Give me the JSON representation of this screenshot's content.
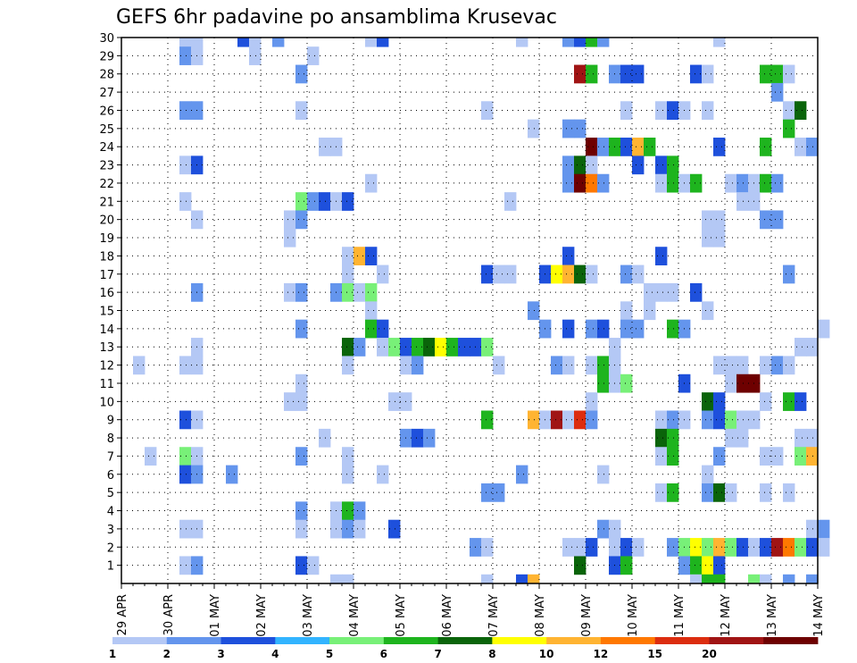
{
  "chart_data": {
    "type": "heatmap",
    "title": "GEFS 6hr padavine po ansamblima Krusevac",
    "ylim": [
      0,
      30
    ],
    "yticks": [
      "1",
      "2",
      "3",
      "4",
      "5",
      "6",
      "7",
      "8",
      "9",
      "10",
      "11",
      "12",
      "13",
      "14",
      "15",
      "16",
      "17",
      "18",
      "19",
      "20",
      "21",
      "22",
      "23",
      "24",
      "25",
      "26",
      "27",
      "28",
      "29",
      "30"
    ],
    "xticks": [
      "29 APR",
      "30 APR",
      "01 MAY",
      "02 MAY",
      "03 MAY",
      "04 MAY",
      "05 MAY",
      "06 MAY",
      "07 MAY",
      "08 MAY",
      "09 MAY",
      "10 MAY",
      "11 MAY",
      "12 MAY",
      "13 MAY",
      "14 MAY"
    ],
    "x_step_hours": 6,
    "grid": true,
    "colorbar": {
      "colors": [
        "#b4c8f5",
        "#6495ed",
        "#1e50dc",
        "#32b4ff",
        "#78f078",
        "#1eb41e",
        "#0a640a",
        "#ffff00",
        "#ffb432",
        "#ff7800",
        "#dc2d0f",
        "#a01414",
        "#6e0000"
      ],
      "labels": [
        "1",
        "2",
        "3",
        "4",
        "5",
        "6",
        "7",
        "8",
        "10",
        "12",
        "15",
        "20"
      ]
    },
    "cells": [
      [
        30,
        5,
        0
      ],
      [
        30,
        6,
        0
      ],
      [
        30,
        10,
        2
      ],
      [
        30,
        11,
        0
      ],
      [
        30,
        13,
        1
      ],
      [
        30,
        21,
        0
      ],
      [
        30,
        22,
        2
      ],
      [
        30,
        34,
        0
      ],
      [
        30,
        38,
        1
      ],
      [
        30,
        39,
        2
      ],
      [
        30,
        40,
        5
      ],
      [
        30,
        41,
        1
      ],
      [
        30,
        51,
        0
      ],
      [
        29,
        5,
        1
      ],
      [
        29,
        6,
        0
      ],
      [
        29,
        11,
        0
      ],
      [
        29,
        16,
        0
      ],
      [
        28,
        15,
        1
      ],
      [
        28,
        39,
        11
      ],
      [
        28,
        40,
        5
      ],
      [
        28,
        42,
        1
      ],
      [
        28,
        43,
        2
      ],
      [
        28,
        44,
        2
      ],
      [
        28,
        49,
        2
      ],
      [
        28,
        50,
        0
      ],
      [
        28,
        55,
        5
      ],
      [
        28,
        56,
        5
      ],
      [
        28,
        57,
        0
      ],
      [
        27,
        56,
        1
      ],
      [
        26,
        5,
        1
      ],
      [
        26,
        6,
        1
      ],
      [
        26,
        15,
        0
      ],
      [
        26,
        31,
        0
      ],
      [
        26,
        43,
        0
      ],
      [
        26,
        46,
        0
      ],
      [
        26,
        47,
        2
      ],
      [
        26,
        48,
        0
      ],
      [
        26,
        50,
        0
      ],
      [
        26,
        57,
        0
      ],
      [
        26,
        58,
        6
      ],
      [
        25,
        35,
        0
      ],
      [
        25,
        38,
        1
      ],
      [
        25,
        39,
        1
      ],
      [
        25,
        57,
        5
      ],
      [
        24,
        17,
        0
      ],
      [
        24,
        18,
        0
      ],
      [
        24,
        40,
        12
      ],
      [
        24,
        41,
        1
      ],
      [
        24,
        42,
        5
      ],
      [
        24,
        43,
        2
      ],
      [
        24,
        44,
        8
      ],
      [
        24,
        45,
        5
      ],
      [
        24,
        51,
        2
      ],
      [
        24,
        55,
        5
      ],
      [
        24,
        58,
        0
      ],
      [
        24,
        59,
        1
      ],
      [
        23,
        5,
        0
      ],
      [
        23,
        6,
        2
      ],
      [
        23,
        38,
        1
      ],
      [
        23,
        39,
        6
      ],
      [
        23,
        40,
        0
      ],
      [
        23,
        44,
        2
      ],
      [
        23,
        46,
        2
      ],
      [
        23,
        47,
        5
      ],
      [
        22,
        21,
        0
      ],
      [
        22,
        38,
        1
      ],
      [
        22,
        39,
        12
      ],
      [
        22,
        40,
        9
      ],
      [
        22,
        41,
        1
      ],
      [
        22,
        46,
        0
      ],
      [
        22,
        47,
        5
      ],
      [
        22,
        48,
        0
      ],
      [
        22,
        49,
        5
      ],
      [
        22,
        52,
        0
      ],
      [
        22,
        53,
        1
      ],
      [
        22,
        54,
        0
      ],
      [
        22,
        55,
        5
      ],
      [
        22,
        56,
        1
      ],
      [
        21,
        5,
        0
      ],
      [
        21,
        15,
        4
      ],
      [
        21,
        16,
        1
      ],
      [
        21,
        17,
        2
      ],
      [
        21,
        18,
        0
      ],
      [
        21,
        19,
        2
      ],
      [
        21,
        33,
        0
      ],
      [
        21,
        53,
        0
      ],
      [
        21,
        54,
        0
      ],
      [
        20,
        6,
        0
      ],
      [
        20,
        14,
        0
      ],
      [
        20,
        15,
        1
      ],
      [
        20,
        50,
        0
      ],
      [
        20,
        51,
        0
      ],
      [
        20,
        55,
        1
      ],
      [
        20,
        56,
        1
      ],
      [
        19,
        14,
        0
      ],
      [
        19,
        50,
        0
      ],
      [
        19,
        51,
        0
      ],
      [
        18,
        19,
        0
      ],
      [
        18,
        20,
        8
      ],
      [
        18,
        21,
        2
      ],
      [
        18,
        38,
        2
      ],
      [
        18,
        46,
        2
      ],
      [
        17,
        19,
        0
      ],
      [
        17,
        22,
        0
      ],
      [
        17,
        31,
        2
      ],
      [
        17,
        32,
        0
      ],
      [
        17,
        33,
        0
      ],
      [
        17,
        36,
        2
      ],
      [
        17,
        37,
        7
      ],
      [
        17,
        38,
        8
      ],
      [
        17,
        39,
        6
      ],
      [
        17,
        40,
        0
      ],
      [
        17,
        43,
        1
      ],
      [
        17,
        44,
        0
      ],
      [
        17,
        57,
        1
      ],
      [
        16,
        6,
        1
      ],
      [
        16,
        14,
        0
      ],
      [
        16,
        15,
        1
      ],
      [
        16,
        18,
        1
      ],
      [
        16,
        19,
        4
      ],
      [
        16,
        20,
        0
      ],
      [
        16,
        21,
        4
      ],
      [
        16,
        45,
        0
      ],
      [
        16,
        46,
        0
      ],
      [
        16,
        47,
        0
      ],
      [
        16,
        49,
        2
      ],
      [
        15,
        21,
        0
      ],
      [
        15,
        35,
        1
      ],
      [
        15,
        43,
        0
      ],
      [
        15,
        45,
        0
      ],
      [
        15,
        50,
        0
      ],
      [
        14,
        15,
        1
      ],
      [
        14,
        21,
        5
      ],
      [
        14,
        22,
        2
      ],
      [
        14,
        36,
        1
      ],
      [
        14,
        38,
        2
      ],
      [
        14,
        40,
        1
      ],
      [
        14,
        41,
        2
      ],
      [
        14,
        43,
        1
      ],
      [
        14,
        44,
        1
      ],
      [
        14,
        47,
        5
      ],
      [
        14,
        48,
        1
      ],
      [
        14,
        60,
        0
      ],
      [
        13,
        6,
        0
      ],
      [
        13,
        19,
        6
      ],
      [
        13,
        20,
        1
      ],
      [
        13,
        22,
        0
      ],
      [
        13,
        23,
        4
      ],
      [
        13,
        24,
        2
      ],
      [
        13,
        25,
        5
      ],
      [
        13,
        26,
        6
      ],
      [
        13,
        27,
        7
      ],
      [
        13,
        28,
        5
      ],
      [
        13,
        29,
        2
      ],
      [
        13,
        30,
        2
      ],
      [
        13,
        31,
        4
      ],
      [
        13,
        42,
        0
      ],
      [
        13,
        58,
        0
      ],
      [
        13,
        59,
        0
      ],
      [
        12,
        1,
        0
      ],
      [
        12,
        5,
        0
      ],
      [
        12,
        6,
        0
      ],
      [
        12,
        19,
        0
      ],
      [
        12,
        24,
        0
      ],
      [
        12,
        25,
        1
      ],
      [
        12,
        32,
        0
      ],
      [
        12,
        37,
        1
      ],
      [
        12,
        38,
        0
      ],
      [
        12,
        40,
        0
      ],
      [
        12,
        41,
        5
      ],
      [
        12,
        42,
        0
      ],
      [
        12,
        51,
        0
      ],
      [
        12,
        52,
        0
      ],
      [
        12,
        53,
        0
      ],
      [
        12,
        55,
        0
      ],
      [
        12,
        56,
        1
      ],
      [
        12,
        57,
        0
      ],
      [
        11,
        15,
        0
      ],
      [
        11,
        41,
        5
      ],
      [
        11,
        42,
        0
      ],
      [
        11,
        43,
        4
      ],
      [
        11,
        48,
        2
      ],
      [
        11,
        52,
        0
      ],
      [
        11,
        53,
        12
      ],
      [
        11,
        54,
        12
      ],
      [
        10,
        14,
        0
      ],
      [
        10,
        15,
        0
      ],
      [
        10,
        23,
        0
      ],
      [
        10,
        24,
        0
      ],
      [
        10,
        40,
        0
      ],
      [
        10,
        50,
        6
      ],
      [
        10,
        51,
        2
      ],
      [
        10,
        55,
        0
      ],
      [
        10,
        57,
        5
      ],
      [
        10,
        58,
        2
      ],
      [
        9,
        5,
        2
      ],
      [
        9,
        6,
        0
      ],
      [
        9,
        31,
        5
      ],
      [
        9,
        35,
        8
      ],
      [
        9,
        36,
        0
      ],
      [
        9,
        37,
        11
      ],
      [
        9,
        38,
        0
      ],
      [
        9,
        39,
        10
      ],
      [
        9,
        40,
        1
      ],
      [
        9,
        46,
        0
      ],
      [
        9,
        47,
        1
      ],
      [
        9,
        48,
        0
      ],
      [
        9,
        50,
        1
      ],
      [
        9,
        51,
        2
      ],
      [
        9,
        52,
        4
      ],
      [
        9,
        53,
        0
      ],
      [
        9,
        54,
        0
      ],
      [
        8,
        17,
        0
      ],
      [
        8,
        24,
        1
      ],
      [
        8,
        25,
        2
      ],
      [
        8,
        26,
        1
      ],
      [
        8,
        46,
        6
      ],
      [
        8,
        47,
        5
      ],
      [
        8,
        52,
        0
      ],
      [
        8,
        53,
        0
      ],
      [
        8,
        58,
        0
      ],
      [
        8,
        59,
        0
      ],
      [
        7,
        2,
        0
      ],
      [
        7,
        5,
        4
      ],
      [
        7,
        6,
        0
      ],
      [
        7,
        15,
        1
      ],
      [
        7,
        19,
        0
      ],
      [
        7,
        46,
        0
      ],
      [
        7,
        47,
        5
      ],
      [
        7,
        51,
        1
      ],
      [
        7,
        55,
        0
      ],
      [
        7,
        56,
        0
      ],
      [
        7,
        58,
        4
      ],
      [
        7,
        59,
        8
      ],
      [
        6,
        5,
        2
      ],
      [
        6,
        6,
        1
      ],
      [
        6,
        9,
        1
      ],
      [
        6,
        19,
        0
      ],
      [
        6,
        22,
        0
      ],
      [
        6,
        34,
        1
      ],
      [
        6,
        41,
        0
      ],
      [
        6,
        50,
        0
      ],
      [
        5,
        31,
        1
      ],
      [
        5,
        32,
        1
      ],
      [
        5,
        46,
        0
      ],
      [
        5,
        47,
        5
      ],
      [
        5,
        50,
        1
      ],
      [
        5,
        51,
        6
      ],
      [
        5,
        52,
        0
      ],
      [
        5,
        55,
        0
      ],
      [
        5,
        57,
        0
      ],
      [
        4,
        15,
        1
      ],
      [
        4,
        18,
        0
      ],
      [
        4,
        19,
        5
      ],
      [
        4,
        20,
        1
      ],
      [
        3,
        5,
        0
      ],
      [
        3,
        6,
        0
      ],
      [
        3,
        15,
        0
      ],
      [
        3,
        18,
        0
      ],
      [
        3,
        19,
        1
      ],
      [
        3,
        20,
        0
      ],
      [
        3,
        23,
        2
      ],
      [
        3,
        41,
        1
      ],
      [
        3,
        42,
        0
      ],
      [
        3,
        59,
        0
      ],
      [
        3,
        60,
        1
      ],
      [
        2,
        30,
        1
      ],
      [
        2,
        31,
        0
      ],
      [
        2,
        38,
        0
      ],
      [
        2,
        39,
        0
      ],
      [
        2,
        40,
        2
      ],
      [
        2,
        42,
        0
      ],
      [
        2,
        43,
        2
      ],
      [
        2,
        44,
        0
      ],
      [
        2,
        47,
        1
      ],
      [
        2,
        48,
        4
      ],
      [
        2,
        49,
        7
      ],
      [
        2,
        50,
        4
      ],
      [
        2,
        51,
        8
      ],
      [
        2,
        52,
        4
      ],
      [
        2,
        53,
        2
      ],
      [
        2,
        54,
        0
      ],
      [
        2,
        55,
        2
      ],
      [
        2,
        56,
        11
      ],
      [
        2,
        57,
        9
      ],
      [
        2,
        58,
        4
      ],
      [
        2,
        59,
        2
      ],
      [
        2,
        60,
        0
      ],
      [
        1,
        5,
        0
      ],
      [
        1,
        6,
        1
      ],
      [
        1,
        15,
        2
      ],
      [
        1,
        16,
        0
      ],
      [
        1,
        39,
        6
      ],
      [
        1,
        42,
        2
      ],
      [
        1,
        43,
        5
      ],
      [
        1,
        48,
        1
      ],
      [
        1,
        49,
        5
      ],
      [
        1,
        50,
        7
      ],
      [
        1,
        51,
        2
      ],
      [
        0,
        18,
        0
      ],
      [
        0,
        19,
        0
      ],
      [
        0,
        31,
        0
      ],
      [
        0,
        34,
        2
      ],
      [
        0,
        35,
        8
      ],
      [
        0,
        49,
        0
      ],
      [
        0,
        50,
        5
      ],
      [
        0,
        51,
        5
      ],
      [
        0,
        54,
        4
      ],
      [
        0,
        55,
        0
      ],
      [
        0,
        57,
        1
      ],
      [
        0,
        59,
        1
      ]
    ]
  }
}
